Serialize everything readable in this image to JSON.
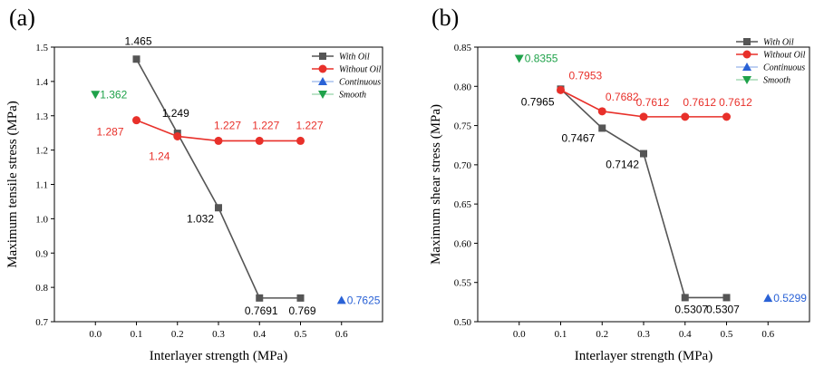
{
  "colors": {
    "with_oil": "#555555",
    "without_oil": "#e8302a",
    "continuous": "#2a62d6",
    "smooth": "#1fa24a"
  },
  "legend_labels": [
    "With Oil",
    "Without Oil",
    "Continuous",
    "Smooth"
  ],
  "chart_data": [
    {
      "panel": "(a)",
      "type": "line",
      "xlabel": "Interlayer strength (MPa)",
      "ylabel": "Maximum tensile stress (MPa)",
      "xlim": [
        -0.1,
        0.7
      ],
      "ylim": [
        0.7,
        1.5
      ],
      "xticks": [
        "0.0",
        "0.1",
        "0.2",
        "0.3",
        "0.4",
        "0.5",
        "0.6"
      ],
      "yticks": [
        "0.7",
        "0.8",
        "0.9",
        "1.0",
        "1.1",
        "1.2",
        "1.3",
        "1.4",
        "1.5"
      ],
      "legend_position": "top-right",
      "series": [
        {
          "name": "With Oil",
          "key": "with_oil",
          "marker": "square",
          "x": [
            0.1,
            0.2,
            0.3,
            0.4,
            0.5
          ],
          "y": [
            1.465,
            1.249,
            1.032,
            0.7691,
            0.769
          ],
          "labels": [
            "1.465",
            "1.249",
            "1.032",
            "0.7691",
            "0.769"
          ]
        },
        {
          "name": "Without Oil",
          "key": "without_oil",
          "marker": "circle",
          "x": [
            0.1,
            0.2,
            0.3,
            0.4,
            0.5
          ],
          "y": [
            1.287,
            1.24,
            1.227,
            1.227,
            1.227
          ],
          "labels": [
            "1.287",
            "1.24",
            "1.227",
            "1.227",
            "1.227"
          ]
        },
        {
          "name": "Continuous",
          "key": "continuous",
          "marker": "triangle-up",
          "x": [
            0.6
          ],
          "y": [
            0.7625
          ],
          "labels": [
            "0.7625"
          ]
        },
        {
          "name": "Smooth",
          "key": "smooth",
          "marker": "triangle-down",
          "x": [
            0.0
          ],
          "y": [
            1.362
          ],
          "labels": [
            "1.362"
          ]
        }
      ]
    },
    {
      "panel": "(b)",
      "type": "line",
      "xlabel": "Interlayer strength (MPa)",
      "ylabel": "Maximum shear stress (MPa)",
      "xlim": [
        -0.1,
        0.7
      ],
      "ylim": [
        0.5,
        0.85
      ],
      "xticks": [
        "0.0",
        "0.1",
        "0.2",
        "0.3",
        "0.4",
        "0.5",
        "0.6"
      ],
      "yticks": [
        "0.50",
        "0.55",
        "0.60",
        "0.65",
        "0.70",
        "0.75",
        "0.80",
        "0.85"
      ],
      "legend_position": "top-right",
      "series": [
        {
          "name": "With Oil",
          "key": "with_oil",
          "marker": "square",
          "x": [
            0.1,
            0.2,
            0.3,
            0.4,
            0.5
          ],
          "y": [
            0.7965,
            0.7467,
            0.7142,
            0.5307,
            0.5307
          ],
          "labels": [
            "0.7965",
            "0.7467",
            "0.7142",
            "0.5307",
            "0.5307"
          ]
        },
        {
          "name": "Without Oil",
          "key": "without_oil",
          "marker": "circle",
          "x": [
            0.1,
            0.2,
            0.3,
            0.4,
            0.5
          ],
          "y": [
            0.7953,
            0.7682,
            0.7612,
            0.7612,
            0.7612
          ],
          "labels": [
            "0.7953",
            "0.7682",
            "0.7612",
            "0.7612",
            "0.7612"
          ]
        },
        {
          "name": "Continuous",
          "key": "continuous",
          "marker": "triangle-up",
          "x": [
            0.6
          ],
          "y": [
            0.5299
          ],
          "labels": [
            "0.5299"
          ]
        },
        {
          "name": "Smooth",
          "key": "smooth",
          "marker": "triangle-down",
          "x": [
            0.0
          ],
          "y": [
            0.8355
          ],
          "labels": [
            "0.8355"
          ]
        }
      ]
    }
  ]
}
